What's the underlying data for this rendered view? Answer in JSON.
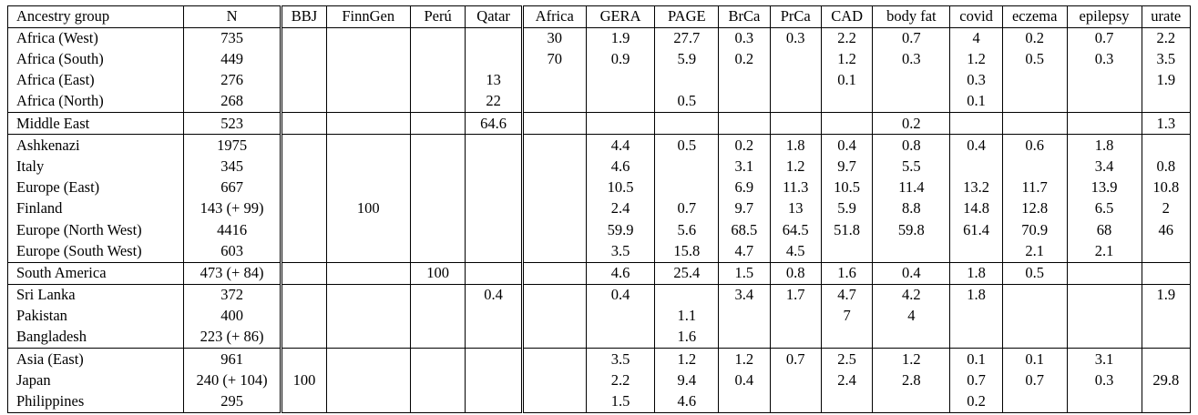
{
  "table": {
    "headers": {
      "ancestry_group": "Ancestry group",
      "n": "N",
      "cohorts": [
        "BBJ",
        "FinnGen",
        "Perú",
        "Qatar",
        "Africa",
        "GERA",
        "PAGE",
        "BrCa",
        "PrCa",
        "CAD",
        "body fat",
        "covid",
        "eczema",
        "epilepsy",
        "urate"
      ]
    },
    "groups": [
      {
        "rows": [
          {
            "label": "Africa (West)",
            "n": "735",
            "values": [
              "",
              "",
              "",
              "",
              "30",
              "1.9",
              "27.7",
              "0.3",
              "0.3",
              "2.2",
              "0.7",
              "4",
              "0.2",
              "0.7",
              "2.2"
            ]
          },
          {
            "label": "Africa (South)",
            "n": "449",
            "values": [
              "",
              "",
              "",
              "",
              "70",
              "0.9",
              "5.9",
              "0.2",
              "",
              "1.2",
              "0.3",
              "1.2",
              "0.5",
              "0.3",
              "3.5"
            ]
          },
          {
            "label": "Africa (East)",
            "n": "276",
            "values": [
              "",
              "",
              "",
              "13",
              "",
              "",
              "",
              "",
              "",
              "0.1",
              "",
              "0.3",
              "",
              "",
              "1.9"
            ]
          },
          {
            "label": "Africa (North)",
            "n": "268",
            "values": [
              "",
              "",
              "",
              "22",
              "",
              "",
              "0.5",
              "",
              "",
              "",
              "",
              "0.1",
              "",
              "",
              ""
            ]
          }
        ]
      },
      {
        "rows": [
          {
            "label": "Middle East",
            "n": "523",
            "values": [
              "",
              "",
              "",
              "64.6",
              "",
              "",
              "",
              "",
              "",
              "",
              "0.2",
              "",
              "",
              "",
              "1.3"
            ]
          }
        ]
      },
      {
        "rows": [
          {
            "label": "Ashkenazi",
            "n": "1975",
            "values": [
              "",
              "",
              "",
              "",
              "",
              "4.4",
              "0.5",
              "0.2",
              "1.8",
              "0.4",
              "0.8",
              "0.4",
              "0.6",
              "1.8",
              ""
            ]
          },
          {
            "label": "Italy",
            "n": "345",
            "values": [
              "",
              "",
              "",
              "",
              "",
              "4.6",
              "",
              "3.1",
              "1.2",
              "9.7",
              "5.5",
              "",
              "",
              "3.4",
              "0.8"
            ]
          },
          {
            "label": "Europe (East)",
            "n": "667",
            "values": [
              "",
              "",
              "",
              "",
              "",
              "10.5",
              "",
              "6.9",
              "11.3",
              "10.5",
              "11.4",
              "13.2",
              "11.7",
              "13.9",
              "10.8"
            ]
          },
          {
            "label": "Finland",
            "n": "143 (+ 99)",
            "values": [
              "",
              "100",
              "",
              "",
              "",
              "2.4",
              "0.7",
              "9.7",
              "13",
              "5.9",
              "8.8",
              "14.8",
              "12.8",
              "6.5",
              "2"
            ]
          },
          {
            "label": "Europe (North West)",
            "n": "4416",
            "values": [
              "",
              "",
              "",
              "",
              "",
              "59.9",
              "5.6",
              "68.5",
              "64.5",
              "51.8",
              "59.8",
              "61.4",
              "70.9",
              "68",
              "46"
            ]
          },
          {
            "label": "Europe (South West)",
            "n": "603",
            "values": [
              "",
              "",
              "",
              "",
              "",
              "3.5",
              "15.8",
              "4.7",
              "4.5",
              "",
              "",
              "",
              "2.1",
              "2.1",
              ""
            ]
          }
        ]
      },
      {
        "rows": [
          {
            "label": "South America",
            "n": "473 (+ 84)",
            "values": [
              "",
              "",
              "100",
              "",
              "",
              "4.6",
              "25.4",
              "1.5",
              "0.8",
              "1.6",
              "0.4",
              "1.8",
              "0.5",
              "",
              ""
            ]
          }
        ]
      },
      {
        "rows": [
          {
            "label": "Sri Lanka",
            "n": "372",
            "values": [
              "",
              "",
              "",
              "0.4",
              "",
              "0.4",
              "",
              "3.4",
              "1.7",
              "4.7",
              "4.2",
              "1.8",
              "",
              "",
              "1.9"
            ]
          },
          {
            "label": "Pakistan",
            "n": "400",
            "values": [
              "",
              "",
              "",
              "",
              "",
              "",
              "1.1",
              "",
              "",
              "7",
              "4",
              "",
              "",
              "",
              ""
            ]
          },
          {
            "label": "Bangladesh",
            "n": "223 (+ 86)",
            "values": [
              "",
              "",
              "",
              "",
              "",
              "",
              "1.6",
              "",
              "",
              "",
              "",
              "",
              "",
              "",
              ""
            ]
          }
        ]
      },
      {
        "rows": [
          {
            "label": "Asia (East)",
            "n": "961",
            "values": [
              "",
              "",
              "",
              "",
              "",
              "3.5",
              "1.2",
              "1.2",
              "0.7",
              "2.5",
              "1.2",
              "0.1",
              "0.1",
              "3.1",
              ""
            ]
          },
          {
            "label": "Japan",
            "n": "240 (+ 104)",
            "values": [
              "100",
              "",
              "",
              "",
              "",
              "2.2",
              "9.4",
              "0.4",
              "",
              "2.4",
              "2.8",
              "0.7",
              "0.7",
              "0.3",
              "29.8"
            ]
          },
          {
            "label": "Philippines",
            "n": "295",
            "values": [
              "",
              "",
              "",
              "",
              "",
              "1.5",
              "4.6",
              "",
              "",
              "",
              "",
              "0.2",
              "",
              "",
              ""
            ]
          }
        ]
      }
    ]
  }
}
